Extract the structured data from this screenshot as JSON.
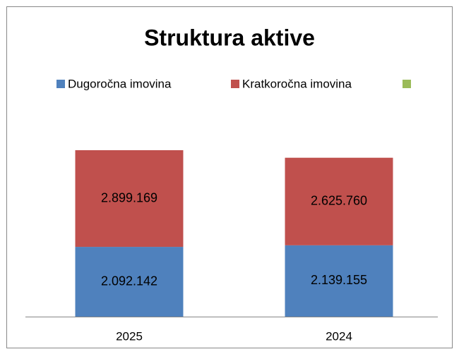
{
  "chart_data": {
    "type": "stacked_bar",
    "title": "Struktura aktive",
    "categories": [
      "2025",
      "2024"
    ],
    "series": [
      {
        "name": "Dugoročna imovina",
        "color": "#4f81bd",
        "values": [
          2092142,
          2139155
        ],
        "value_labels": [
          "2.092.142",
          "2.139.155"
        ]
      },
      {
        "name": "Kratkoročna imovina",
        "color": "#c0504d",
        "values": [
          2899169,
          2625760
        ],
        "value_labels": [
          "2.899.169",
          "2.625.760"
        ]
      },
      {
        "name": null,
        "color": "#9bbb59",
        "values": [
          null,
          null
        ]
      }
    ],
    "ylim": [
      0,
      7000000
    ]
  }
}
